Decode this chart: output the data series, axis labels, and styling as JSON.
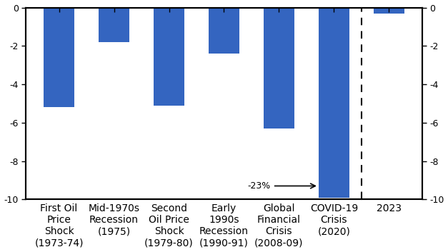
{
  "categories": [
    "First Oil\nPrice\nShock\n(1973-74)",
    "Mid-1970s\nRecession\n(1975)",
    "Second\nOil Price\nShock\n(1979-80)",
    "Early\n1990s\nRecession\n(1990-91)",
    "Global\nFinancial\nCrisis\n(2008-09)",
    "COVID-19\nCrisis\n(2020)",
    "2023"
  ],
  "values": [
    -5.2,
    -1.8,
    -5.1,
    -2.4,
    -6.3,
    -9.9,
    -0.3
  ],
  "bar_color": "#3465C0",
  "ylim": [
    -10,
    0
  ],
  "yticks": [
    0,
    -2,
    -4,
    -6,
    -8,
    -10
  ],
  "annotation_text": "-23%",
  "bar_width": 0.55,
  "background_color": "#ffffff",
  "axis_color": "#000000",
  "figsize": [
    6.27,
    3.53
  ],
  "dpi": 100
}
